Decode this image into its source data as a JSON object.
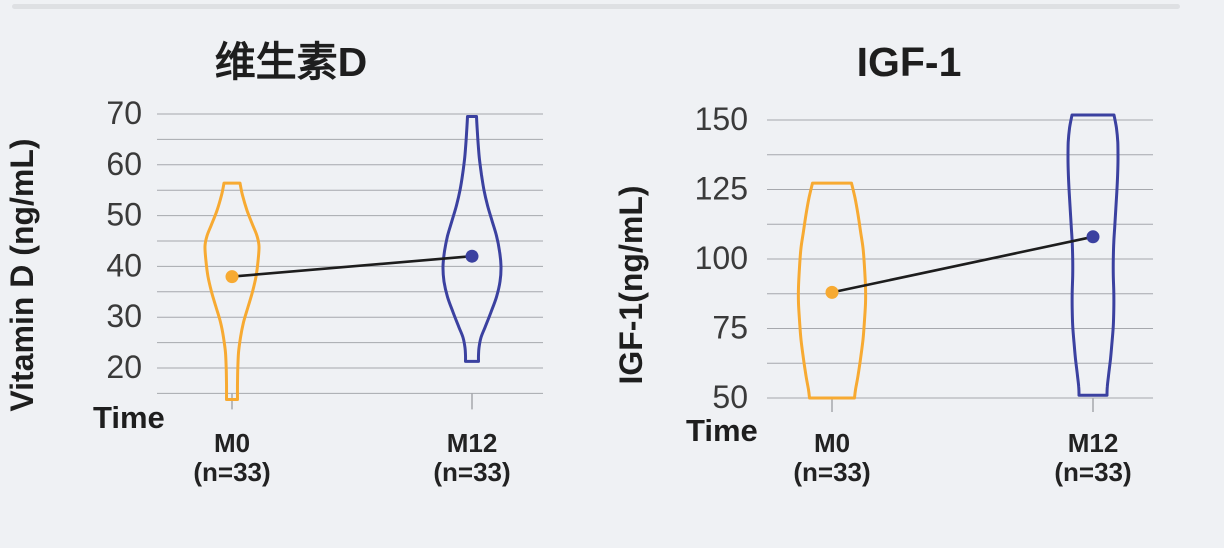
{
  "page": {
    "background_color": "#eff1f4",
    "divider_color": "#dee0e3"
  },
  "colors": {
    "series_m0": "#f7aa32",
    "series_m12": "#3b41a0",
    "connector_line": "#1d1d1d",
    "gridline": "#a6a8ad",
    "text_dark": "#222222",
    "text_tick": "#3a3a3a"
  },
  "chart_data": [
    {
      "type": "violin",
      "title": "维生素D",
      "ylabel": "Vitamin D (ng/mL)",
      "xlabel": "Time",
      "categories": [
        "M0",
        "M12"
      ],
      "category_sublabels": [
        "(n=33)",
        "(n=33)"
      ],
      "ylim": [
        13,
        71
      ],
      "yticks": [
        20,
        30,
        40,
        50,
        60,
        70
      ],
      "grid": {
        "min": 15,
        "max": 70,
        "step": 5
      },
      "legend": null,
      "series": [
        {
          "name": "M0",
          "color": "#f7aa32",
          "mean": 38,
          "min": 13.8,
          "max": 56.4,
          "profile": [
            [
              56.4,
              8
            ],
            [
              54,
              10.5
            ],
            [
              51,
              15
            ],
            [
              48,
              21
            ],
            [
              46,
              25
            ],
            [
              44,
              27
            ],
            [
              41,
              26
            ],
            [
              38,
              24
            ],
            [
              35,
              20.5
            ],
            [
              32,
              16
            ],
            [
              29,
              11.5
            ],
            [
              26,
              8.5
            ],
            [
              23,
              6.5
            ],
            [
              20,
              5.8
            ],
            [
              17,
              5.5
            ],
            [
              13.8,
              5.5
            ]
          ]
        },
        {
          "name": "M12",
          "color": "#3b41a0",
          "mean": 42,
          "min": 21.3,
          "max": 69.5,
          "profile": [
            [
              69.5,
              4.5
            ],
            [
              67,
              5.2
            ],
            [
              64,
              6.2
            ],
            [
              61,
              7.5
            ],
            [
              58,
              9.5
            ],
            [
              55,
              12
            ],
            [
              52,
              15.5
            ],
            [
              49,
              20
            ],
            [
              46,
              24.5
            ],
            [
              43,
              27.5
            ],
            [
              40,
              29
            ],
            [
              37,
              28
            ],
            [
              34,
              24.5
            ],
            [
              31,
              19
            ],
            [
              28,
              13
            ],
            [
              26,
              9
            ],
            [
              24,
              7
            ],
            [
              22.5,
              6.5
            ],
            [
              21.3,
              6.5
            ]
          ]
        }
      ],
      "mean_connector": [
        38,
        42
      ]
    },
    {
      "type": "violin",
      "title": "IGF-1",
      "ylabel": "IGF-1(ng/mL)",
      "xlabel": "Time",
      "categories": [
        "M0",
        "M12"
      ],
      "category_sublabels": [
        "(n=33)",
        "(n=33)"
      ],
      "ylim": [
        48,
        153
      ],
      "yticks": [
        50,
        75,
        100,
        125,
        150
      ],
      "grid": {
        "min": 50,
        "max": 150,
        "step": 12.5
      },
      "legend": null,
      "series": [
        {
          "name": "M0",
          "color": "#f7aa32",
          "mean": 88,
          "min": 50,
          "max": 127.3,
          "profile": [
            [
              127.3,
              19.5
            ],
            [
              122,
              23
            ],
            [
              116,
              26
            ],
            [
              110,
              28.5
            ],
            [
              104,
              31
            ],
            [
              97,
              32.5
            ],
            [
              90,
              33.5
            ],
            [
              84,
              33.5
            ],
            [
              78,
              32.5
            ],
            [
              71,
              31
            ],
            [
              64,
              28.5
            ],
            [
              58,
              26
            ],
            [
              53,
              23.5
            ],
            [
              50,
              22.5
            ]
          ]
        },
        {
          "name": "M12",
          "color": "#3b41a0",
          "mean": 108,
          "min": 51,
          "max": 151.8,
          "profile": [
            [
              151.8,
              21
            ],
            [
              147,
              23.5
            ],
            [
              142,
              24.8
            ],
            [
              136,
              25
            ],
            [
              130,
              24.6
            ],
            [
              124,
              23.8
            ],
            [
              118,
              22.8
            ],
            [
              112,
              21.8
            ],
            [
              106,
              20.8
            ],
            [
              100,
              20.3
            ],
            [
              94,
              20.3
            ],
            [
              88,
              20.8
            ],
            [
              82,
              20.8
            ],
            [
              76,
              20.3
            ],
            [
              70,
              19
            ],
            [
              64,
              17.5
            ],
            [
              58,
              15.5
            ],
            [
              54,
              14.3
            ],
            [
              51,
              14
            ]
          ]
        }
      ],
      "mean_connector": [
        88,
        108
      ]
    }
  ]
}
